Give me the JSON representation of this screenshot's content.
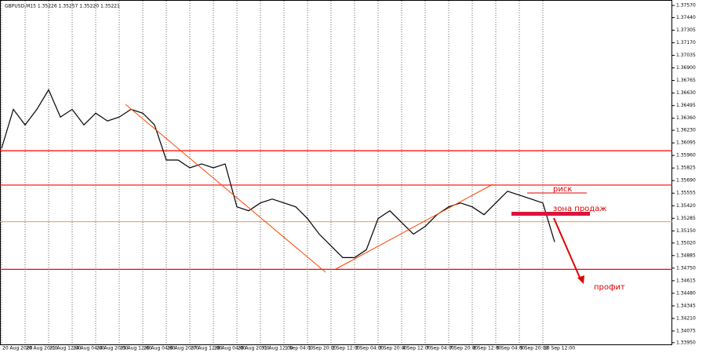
{
  "chart_data": {
    "type": "line",
    "title": "GBPUSD,M15 1.35226 1.35257 1.35220 1.35221",
    "categories": [
      "20 Aug 2020",
      null,
      "20 Aug 20:00",
      null,
      "21 Aug 12:00",
      null,
      "24 Aug 04:00",
      null,
      "24 Aug 20:00",
      null,
      "25 Aug 12:00",
      null,
      "26 Aug 04:00",
      null,
      "26 Aug 20:00",
      null,
      "27 Aug 12:00",
      null,
      "28 Aug 04:00",
      null,
      "28 Aug 20:00",
      null,
      "31 Aug 12:00",
      null,
      "1 Sep 04:00",
      null,
      "1 Sep 20:00",
      null,
      "2 Sep 12:00",
      null,
      "3 Sep 04:00",
      null,
      "3 Sep 20:00",
      null,
      "4 Sep 12:00",
      null,
      "7 Sep 04:00",
      null,
      "7 Sep 20:00",
      null,
      "8 Sep 12:00",
      null,
      "9 Sep 04:00",
      null,
      "9 Sep 20:00",
      null,
      "10 Sep 12:00",
      null
    ],
    "series": [
      {
        "name": "GBPUSD,M15",
        "color": "#000000",
        "values": [
          1.36036,
          1.36455,
          1.36288,
          1.36455,
          1.36665,
          1.36372,
          1.36455,
          1.36288,
          1.36414,
          1.3633,
          1.36372,
          1.36455,
          1.36414,
          1.36288,
          1.35911,
          1.35911,
          1.35827,
          1.35869,
          1.35827,
          1.35869,
          1.35408,
          1.35366,
          1.3545,
          1.35492,
          1.3545,
          1.35408,
          1.35282,
          1.35115,
          1.34989,
          1.34863,
          1.34863,
          1.34947,
          1.35282,
          1.35366,
          1.3524,
          1.35115,
          1.35198,
          1.35324,
          1.35408,
          1.3545,
          1.35408,
          1.35324,
          1.3545,
          1.35576,
          1.35534,
          1.35492,
          1.3545,
          1.35031
        ]
      }
    ],
    "levels": [
      {
        "value": 1.36011,
        "color": "#ff0000"
      },
      {
        "value": 1.35642,
        "color": "#ff0000"
      },
      {
        "value": 1.34737,
        "color": "#ff0000"
      },
      {
        "value": 1.35249,
        "color": "#f4a460"
      }
    ],
    "ylim": [
      1.3394,
      1.3757
    ],
    "yticks": [
      {
        "value": 1.3757,
        "label": "1.37570"
      },
      {
        "value": 1.3744,
        "label": "1.37440"
      },
      {
        "value": 1.37305,
        "label": "1.37305"
      },
      {
        "value": 1.3717,
        "label": "1.37170"
      },
      {
        "value": 1.37035,
        "label": "1.37035"
      },
      {
        "value": 1.369,
        "label": "1.36900"
      },
      {
        "value": 1.36765,
        "label": "1.36765"
      },
      {
        "value": 1.3663,
        "label": "1.36630"
      },
      {
        "value": 1.36495,
        "label": "1.36495"
      },
      {
        "value": 1.3636,
        "label": "1.36360"
      },
      {
        "value": 1.3623,
        "label": "1.36230"
      },
      {
        "value": 1.36095,
        "label": "1.36095"
      },
      {
        "value": 1.3596,
        "label": "1.35960"
      },
      {
        "value": 1.35825,
        "label": "1.35825"
      },
      {
        "value": 1.3569,
        "label": "1.35690"
      },
      {
        "value": 1.35555,
        "label": "1.35555"
      },
      {
        "value": 1.3542,
        "label": "1.35420"
      },
      {
        "value": 1.35285,
        "label": "1.35285"
      },
      {
        "value": 1.3515,
        "label": "1.35150"
      },
      {
        "value": 1.3502,
        "label": "1.35020"
      },
      {
        "value": 1.34885,
        "label": "1.34885"
      },
      {
        "value": 1.3475,
        "label": "1.34750"
      },
      {
        "value": 1.34615,
        "label": "1.34615"
      },
      {
        "value": 1.3448,
        "label": "1.34480"
      },
      {
        "value": 1.34345,
        "label": "1.34345"
      },
      {
        "value": 1.3421,
        "label": "1.34210"
      },
      {
        "value": 1.34075,
        "label": "1.34075"
      },
      {
        "value": 1.3395,
        "label": "1.33950"
      }
    ],
    "grid": true,
    "annotations": [
      "риск",
      "зона продаж",
      "профит"
    ]
  }
}
